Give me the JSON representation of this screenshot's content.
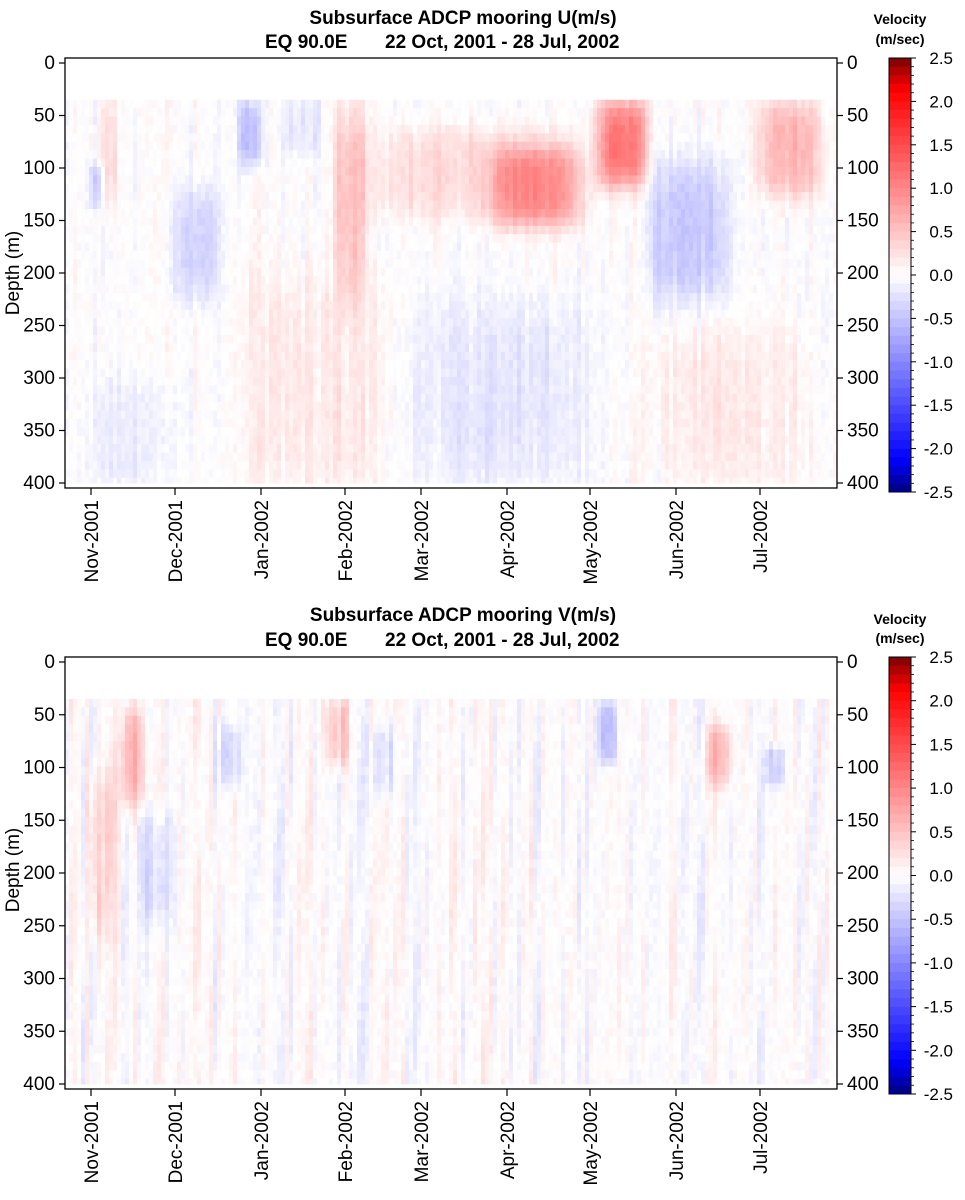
{
  "chart_data": [
    {
      "type": "heatmap",
      "title": "Subsurface ADCP mooring U(m/s)",
      "subtitle_station": "EQ 90.0E",
      "subtitle_dates": "22 Oct, 2001 - 28 Jul, 2002",
      "ylabel": "Depth (m)",
      "ylim": [
        0,
        400
      ],
      "y_ticks": [
        "0",
        "50",
        "100",
        "150",
        "200",
        "250",
        "300",
        "350",
        "400"
      ],
      "x_ticks": [
        "Nov-2001",
        "Dec-2001",
        "Jan-2002",
        "Feb-2002",
        "Mar-2002",
        "Apr-2002",
        "May-2002",
        "Jun-2002",
        "Jul-2002"
      ],
      "data_top_depth_m": 35,
      "data_bottom_depth_m": 400,
      "colorbar": {
        "title_line1": "Velocity",
        "title_line2": "(m/sec)",
        "range": [
          -2.5,
          2.5
        ],
        "ticks": [
          "2.5",
          "2.0",
          "1.5",
          "1.0",
          "0.5",
          "0.0",
          "-0.5",
          "-1.0",
          "-1.5",
          "-2.0",
          "-2.5"
        ]
      },
      "grid": false,
      "features": [
        {
          "time": [
            0.15,
            0.28
          ],
          "depth": [
            35,
            130
          ],
          "value": 0.3
        },
        {
          "time": [
            0.02,
            0.1
          ],
          "depth": [
            95,
            130
          ],
          "value": -0.4
        },
        {
          "time": [
            1.0,
            1.5
          ],
          "depth": [
            120,
            220
          ],
          "value": -0.35
        },
        {
          "time": [
            1.8,
            2.0
          ],
          "depth": [
            35,
            90
          ],
          "value": -0.55
        },
        {
          "time": [
            2.3,
            2.7
          ],
          "depth": [
            35,
            80
          ],
          "value": -0.2
        },
        {
          "time": [
            2.95,
            3.25
          ],
          "depth": [
            35,
            220
          ],
          "value": 0.45
        },
        {
          "time": [
            3.3,
            5.8
          ],
          "depth": [
            60,
            140
          ],
          "value": 0.3
        },
        {
          "time": [
            4.8,
            5.8
          ],
          "depth": [
            80,
            150
          ],
          "value": 0.75
        },
        {
          "time": [
            6.1,
            6.6
          ],
          "depth": [
            35,
            110
          ],
          "value": 1.1
        },
        {
          "time": [
            6.7,
            7.6
          ],
          "depth": [
            90,
            220
          ],
          "value": -0.45
        },
        {
          "time": [
            8.0,
            8.7
          ],
          "depth": [
            35,
            120
          ],
          "value": 0.6
        },
        {
          "time": [
            3.8,
            6.0
          ],
          "depth": [
            220,
            400
          ],
          "value": -0.2
        },
        {
          "time": [
            0.0,
            1.0
          ],
          "depth": [
            300,
            400
          ],
          "value": -0.15
        },
        {
          "time": [
            1.8,
            3.6
          ],
          "depth": [
            200,
            400
          ],
          "value": 0.18
        },
        {
          "time": [
            6.8,
            8.5
          ],
          "depth": [
            250,
            400
          ],
          "value": 0.18
        }
      ]
    },
    {
      "type": "heatmap",
      "title": "Subsurface ADCP mooring V(m/s)",
      "subtitle_station": "EQ 90.0E",
      "subtitle_dates": "22 Oct, 2001 - 28 Jul, 2002",
      "ylabel": "Depth (m)",
      "ylim": [
        0,
        400
      ],
      "y_ticks": [
        "0",
        "50",
        "100",
        "150",
        "200",
        "250",
        "300",
        "350",
        "400"
      ],
      "x_ticks": [
        "Nov-2001",
        "Dec-2001",
        "Jan-2002",
        "Feb-2002",
        "Mar-2002",
        "Apr-2002",
        "May-2002",
        "Jun-2002",
        "Jul-2002"
      ],
      "data_top_depth_m": 35,
      "data_bottom_depth_m": 400,
      "colorbar": {
        "title_line1": "Velocity",
        "title_line2": "(m/sec)",
        "range": [
          -2.5,
          2.5
        ],
        "ticks": [
          "2.5",
          "2.0",
          "1.5",
          "1.0",
          "0.5",
          "0.0",
          "-0.5",
          "-1.0",
          "-1.5",
          "-2.0",
          "-2.5"
        ]
      },
      "grid": false,
      "features": [
        {
          "time": [
            0.4,
            0.6
          ],
          "depth": [
            40,
            130
          ],
          "value": 0.6
        },
        {
          "time": [
            0.0,
            0.3
          ],
          "depth": [
            100,
            260
          ],
          "value": 0.3
        },
        {
          "time": [
            0.6,
            0.95
          ],
          "depth": [
            140,
            240
          ],
          "value": -0.3
        },
        {
          "time": [
            1.55,
            1.75
          ],
          "depth": [
            60,
            110
          ],
          "value": -0.35
        },
        {
          "time": [
            2.85,
            3.05
          ],
          "depth": [
            35,
            90
          ],
          "value": 0.45
        },
        {
          "time": [
            3.4,
            3.6
          ],
          "depth": [
            60,
            120
          ],
          "value": -0.3
        },
        {
          "time": [
            6.1,
            6.25
          ],
          "depth": [
            35,
            90
          ],
          "value": -0.55
        },
        {
          "time": [
            7.4,
            7.6
          ],
          "depth": [
            60,
            110
          ],
          "value": 0.55
        },
        {
          "time": [
            8.1,
            8.25
          ],
          "depth": [
            80,
            110
          ],
          "value": -0.4
        }
      ]
    }
  ]
}
